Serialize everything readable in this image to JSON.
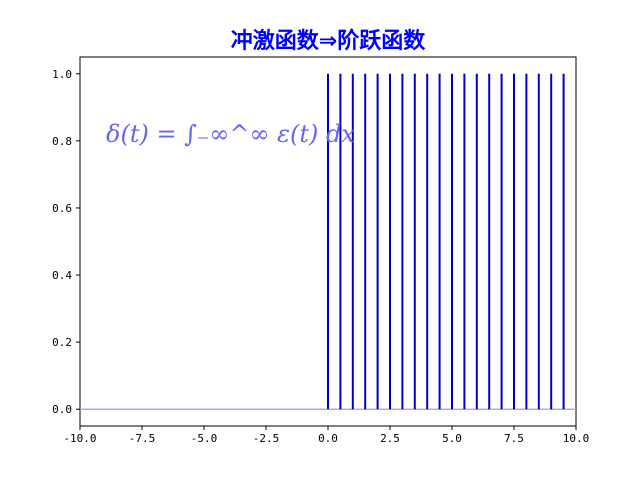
{
  "chart_data": {
    "type": "line",
    "title": "冲激函数⇒阶跃函数",
    "annotation": "δ(t) = ∫₋∞^∞ ε(t) dx",
    "xlabel": "",
    "ylabel": "",
    "xlim": [
      -10.0,
      10.0
    ],
    "ylim": [
      -0.05,
      1.05
    ],
    "grid": false,
    "xticks": [
      -10.0,
      -7.5,
      -5.0,
      -2.5,
      0.0,
      2.5,
      5.0,
      7.5,
      10.0
    ],
    "xtick_labels": [
      "-10.0",
      "-7.5",
      "-5.0",
      "-2.5",
      "0.0",
      "2.5",
      "5.0",
      "7.5",
      "10.0"
    ],
    "yticks": [
      0.0,
      0.2,
      0.4,
      0.6,
      0.8,
      1.0
    ],
    "ytick_labels": [
      "0.0",
      "0.2",
      "0.4",
      "0.6",
      "0.8",
      "1.0"
    ],
    "series": [
      {
        "kind": "baseline",
        "x": [
          -10.0,
          10.0
        ],
        "y": [
          0.0,
          0.0
        ]
      },
      {
        "kind": "impulses",
        "x": [
          0.0,
          0.5,
          1.0,
          1.5,
          2.0,
          2.5,
          3.0,
          3.5,
          4.0,
          4.5,
          5.0,
          5.5,
          6.0,
          6.5,
          7.0,
          7.5,
          8.0,
          8.5,
          9.0,
          9.5
        ],
        "y": [
          1,
          1,
          1,
          1,
          1,
          1,
          1,
          1,
          1,
          1,
          1,
          1,
          1,
          1,
          1,
          1,
          1,
          1,
          1,
          1
        ]
      }
    ],
    "colors": {
      "title": "#0000ff",
      "impulse": "#0000cc",
      "baseline": "#9999ff",
      "annotation": "#6666ee"
    }
  }
}
